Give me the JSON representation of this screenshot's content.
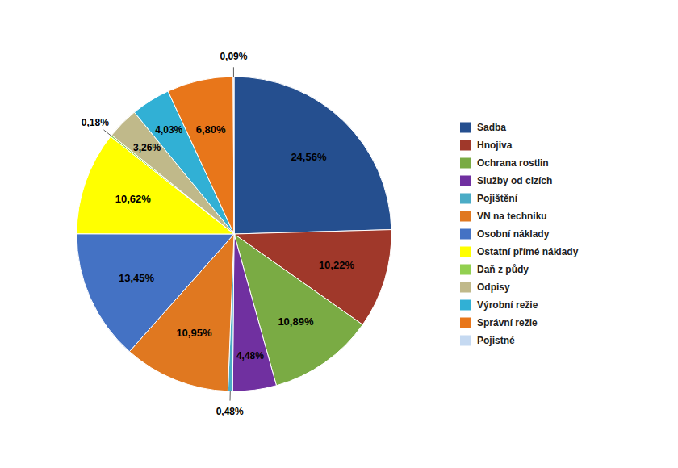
{
  "chart_data": {
    "type": "pie",
    "categories": [
      "Sadba",
      "Hnojiva",
      "Ochrana rostlin",
      "Služby od cizích",
      "Pojištění",
      "VN na techniku",
      "Osobní náklady",
      "Ostatní přímé náklady",
      "Daň z půdy",
      "Odpisy",
      "Výrobní režie",
      "Správní režie",
      "Pojistné"
    ],
    "values": [
      24.56,
      10.22,
      10.89,
      4.48,
      0.48,
      10.95,
      13.45,
      10.62,
      0.18,
      3.26,
      4.03,
      6.8,
      0.09
    ],
    "value_labels": [
      "24,56%",
      "10,22%",
      "10,89%",
      "4,48%",
      "0,48%",
      "10,95%",
      "13,45%",
      "10,62%",
      "0,18%",
      "3,26%",
      "4,03%",
      "6,80%",
      "0,09%"
    ],
    "colors": [
      "#254F8F",
      "#A0382A",
      "#7AAB44",
      "#7030A0",
      "#4BACC6",
      "#E07820",
      "#4472C4",
      "#FFFF00",
      "#92D050",
      "#C0B98A",
      "#31B0D5",
      "#E8761A",
      "#C5D9F1"
    ],
    "data_labels": true,
    "legend": "right"
  }
}
